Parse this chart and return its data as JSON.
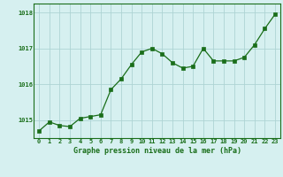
{
  "x": [
    0,
    1,
    2,
    3,
    4,
    5,
    6,
    7,
    8,
    9,
    10,
    11,
    12,
    13,
    14,
    15,
    16,
    17,
    18,
    19,
    20,
    21,
    22,
    23
  ],
  "y": [
    1014.7,
    1014.95,
    1014.85,
    1014.82,
    1015.05,
    1015.1,
    1015.15,
    1015.85,
    1016.15,
    1016.55,
    1016.9,
    1017.0,
    1016.85,
    1016.6,
    1016.45,
    1016.5,
    1017.0,
    1016.65,
    1016.65,
    1016.65,
    1016.75,
    1017.1,
    1017.55,
    1017.95
  ],
  "line_color": "#1a6e1a",
  "marker_color": "#1a6e1a",
  "bg_color": "#d6f0f0",
  "grid_color": "#aed4d4",
  "xlabel": "Graphe pression niveau de la mer (hPa)",
  "xlabel_color": "#1a6e1a",
  "tick_color": "#1a6e1a",
  "ylim": [
    1014.5,
    1018.25
  ],
  "yticks": [
    1015,
    1016,
    1017,
    1018
  ],
  "xticks": [
    0,
    1,
    2,
    3,
    4,
    5,
    6,
    7,
    8,
    9,
    10,
    11,
    12,
    13,
    14,
    15,
    16,
    17,
    18,
    19,
    20,
    21,
    22,
    23
  ],
  "spine_color": "#1a6e1a",
  "tick_fontsize": 5.0,
  "xlabel_fontsize": 6.0
}
